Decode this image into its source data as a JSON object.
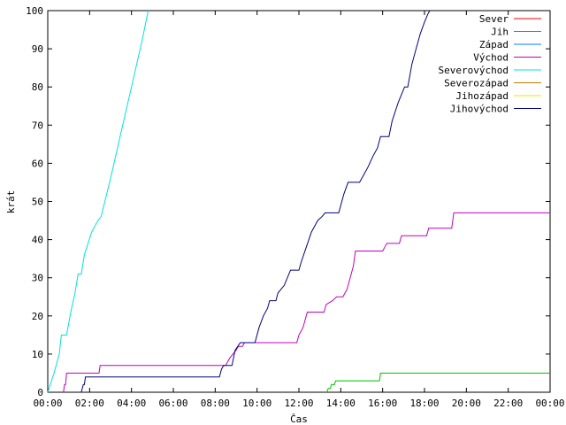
{
  "chart_data": {
    "type": "line",
    "xlabel": "Čas",
    "ylabel": "krát",
    "xlim": [
      0,
      24
    ],
    "ylim": [
      0,
      100
    ],
    "x_tick_values": [
      0,
      2,
      4,
      6,
      8,
      10,
      12,
      14,
      16,
      18,
      20,
      22,
      24
    ],
    "x_tick_labels": [
      "00:00",
      "02:00",
      "04:00",
      "06:00",
      "08:00",
      "10:00",
      "12:00",
      "14:00",
      "16:00",
      "18:00",
      "20:00",
      "22:00",
      "00:00"
    ],
    "y_tick_values": [
      0,
      10,
      20,
      30,
      40,
      50,
      60,
      70,
      80,
      90,
      100
    ],
    "grid": false,
    "legend_position": "top-right",
    "series": [
      {
        "name": "Sever",
        "color": "#ff0000",
        "points": []
      },
      {
        "name": "Jih",
        "color": "#00c000",
        "points": [
          [
            13.33,
            0
          ],
          [
            13.4,
            1
          ],
          [
            13.5,
            1
          ],
          [
            13.55,
            2
          ],
          [
            13.7,
            2
          ],
          [
            13.75,
            3
          ],
          [
            15.85,
            3
          ],
          [
            15.9,
            5
          ],
          [
            24,
            5
          ]
        ]
      },
      {
        "name": "Západ",
        "color": "#0080ff",
        "points": []
      },
      {
        "name": "Východ",
        "color": "#c000c0",
        "points": [
          [
            0.75,
            0
          ],
          [
            0.8,
            2
          ],
          [
            0.85,
            2
          ],
          [
            0.9,
            5
          ],
          [
            2.45,
            5
          ],
          [
            2.5,
            7
          ],
          [
            8.5,
            7
          ],
          [
            8.6,
            8
          ],
          [
            8.7,
            9
          ],
          [
            8.85,
            10
          ],
          [
            9.0,
            11
          ],
          [
            9.1,
            12
          ],
          [
            9.3,
            12
          ],
          [
            9.4,
            13
          ],
          [
            11.9,
            13
          ],
          [
            12.0,
            15
          ],
          [
            12.1,
            16
          ],
          [
            12.2,
            17
          ],
          [
            12.4,
            21
          ],
          [
            13.2,
            21
          ],
          [
            13.3,
            23
          ],
          [
            13.6,
            24
          ],
          [
            13.8,
            25
          ],
          [
            14.1,
            25
          ],
          [
            14.2,
            26
          ],
          [
            14.3,
            27
          ],
          [
            14.4,
            29
          ],
          [
            14.6,
            33
          ],
          [
            14.7,
            37
          ],
          [
            16.0,
            37
          ],
          [
            16.1,
            38
          ],
          [
            16.2,
            39
          ],
          [
            16.8,
            39
          ],
          [
            16.9,
            41
          ],
          [
            18.1,
            41
          ],
          [
            18.2,
            43
          ],
          [
            19.3,
            43
          ],
          [
            19.4,
            47
          ],
          [
            24,
            47
          ]
        ]
      },
      {
        "name": "Severovýchod",
        "color": "#00e0e0",
        "points": [
          [
            0,
            0
          ],
          [
            0.3,
            5
          ],
          [
            0.55,
            10
          ],
          [
            0.65,
            15
          ],
          [
            0.9,
            15
          ],
          [
            1.1,
            21
          ],
          [
            1.3,
            26
          ],
          [
            1.45,
            31
          ],
          [
            1.6,
            31
          ],
          [
            1.75,
            36
          ],
          [
            2.1,
            42
          ],
          [
            2.4,
            45
          ],
          [
            2.55,
            46
          ],
          [
            3.0,
            56
          ],
          [
            3.5,
            68
          ],
          [
            4.0,
            80
          ],
          [
            4.5,
            92
          ],
          [
            4.8,
            100
          ]
        ]
      },
      {
        "name": "Severozápad",
        "color": "#c08000",
        "points": []
      },
      {
        "name": "Jihozápad",
        "color": "#e8e800",
        "points": []
      },
      {
        "name": "Jihovýchod",
        "color": "#000080",
        "points": [
          [
            1.6,
            0
          ],
          [
            1.7,
            2
          ],
          [
            1.75,
            2
          ],
          [
            1.8,
            4
          ],
          [
            8.2,
            4
          ],
          [
            8.3,
            6
          ],
          [
            8.4,
            7
          ],
          [
            8.8,
            7
          ],
          [
            8.95,
            11
          ],
          [
            9.2,
            13
          ],
          [
            9.9,
            13
          ],
          [
            10.1,
            17
          ],
          [
            10.3,
            20
          ],
          [
            10.5,
            22
          ],
          [
            10.6,
            24
          ],
          [
            10.9,
            24
          ],
          [
            11.0,
            26
          ],
          [
            11.3,
            28
          ],
          [
            11.6,
            32
          ],
          [
            12.0,
            32
          ],
          [
            12.1,
            34
          ],
          [
            12.35,
            38
          ],
          [
            12.6,
            42
          ],
          [
            12.9,
            45
          ],
          [
            13.1,
            46
          ],
          [
            13.25,
            47
          ],
          [
            13.9,
            47
          ],
          [
            14.15,
            52
          ],
          [
            14.35,
            55
          ],
          [
            14.9,
            55
          ],
          [
            15.1,
            57
          ],
          [
            15.3,
            59
          ],
          [
            15.55,
            62
          ],
          [
            15.75,
            64
          ],
          [
            15.9,
            67
          ],
          [
            16.3,
            67
          ],
          [
            16.45,
            71
          ],
          [
            16.75,
            76
          ],
          [
            17.05,
            80
          ],
          [
            17.2,
            80
          ],
          [
            17.4,
            86
          ],
          [
            17.6,
            90
          ],
          [
            17.8,
            94
          ],
          [
            18.0,
            97
          ],
          [
            18.15,
            99
          ],
          [
            18.25,
            100
          ]
        ]
      }
    ]
  }
}
